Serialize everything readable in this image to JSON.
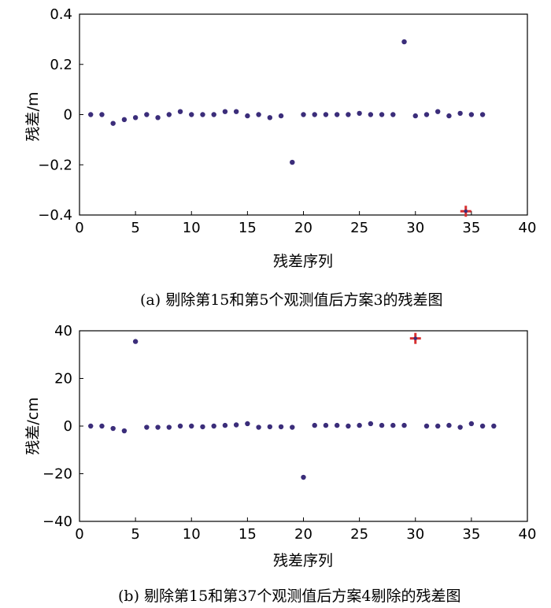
{
  "figure": {
    "captions": [
      "(a) 剔除第15和第5个观测值后方案3的残差图",
      "(b) 剔除第15和第37个观测值后方案4剔除的残差图"
    ]
  },
  "colors": {
    "point": "#3b2d7a",
    "marker": "#d83030",
    "axis": "#000000"
  },
  "chart_data": [
    {
      "type": "scatter",
      "title": "",
      "xlabel": "残差序列",
      "ylabel": "残差/m",
      "xlim": [
        0,
        40
      ],
      "ylim": [
        -0.4,
        0.4
      ],
      "xticks": [
        0,
        5,
        10,
        15,
        20,
        25,
        30,
        35,
        40
      ],
      "xtick_labels": [
        "0",
        "5",
        "10",
        "15",
        "20",
        "25",
        "30",
        "35",
        "40"
      ],
      "yticks": [
        -0.4,
        -0.2,
        0,
        0.2,
        0.4
      ],
      "ytick_labels": [
        "−0.4",
        "−0.2",
        "0",
        "0.2",
        "0.4"
      ],
      "grid": false,
      "x": [
        1,
        2,
        3,
        4,
        5,
        6,
        7,
        8,
        9,
        10,
        11,
        12,
        13,
        14,
        15,
        16,
        17,
        18,
        19,
        20,
        21,
        22,
        23,
        24,
        25,
        26,
        27,
        28,
        29,
        30,
        31,
        32,
        33,
        34,
        35,
        36
      ],
      "y": [
        0,
        0,
        -0.035,
        -0.02,
        -0.012,
        0,
        -0.012,
        0,
        0.012,
        0,
        0,
        0,
        0.012,
        0.012,
        -0.005,
        0,
        -0.012,
        -0.005,
        -0.19,
        0,
        0,
        0,
        0,
        0,
        0.005,
        0,
        0,
        0,
        0.29,
        -0.005,
        0,
        0.012,
        -0.005,
        0.005,
        0,
        0
      ],
      "marked_points": [
        {
          "x": 34.5,
          "y": -0.385
        }
      ]
    },
    {
      "type": "scatter",
      "title": "",
      "xlabel": "残差序列",
      "ylabel": "残差/cm",
      "xlim": [
        0,
        40
      ],
      "ylim": [
        -40,
        40
      ],
      "xticks": [
        0,
        5,
        10,
        15,
        20,
        25,
        30,
        35,
        40
      ],
      "xtick_labels": [
        "0",
        "5",
        "10",
        "15",
        "20",
        "25",
        "30",
        "35",
        "40"
      ],
      "yticks": [
        -40,
        -20,
        0,
        20,
        40
      ],
      "ytick_labels": [
        "−40",
        "−20",
        "0",
        "20",
        "40"
      ],
      "grid": false,
      "x": [
        1,
        2,
        3,
        4,
        5,
        6,
        7,
        8,
        9,
        10,
        11,
        12,
        13,
        14,
        15,
        16,
        17,
        18,
        19,
        20,
        21,
        22,
        23,
        24,
        25,
        26,
        27,
        28,
        29,
        31,
        32,
        33,
        34,
        35,
        36,
        37
      ],
      "y": [
        0,
        0,
        -1,
        -2,
        35.5,
        -0.5,
        -0.5,
        -0.5,
        0,
        0,
        -0.3,
        0,
        0.3,
        0.5,
        1,
        -0.5,
        -0.3,
        -0.3,
        -0.5,
        -21.5,
        0.3,
        0.3,
        0.3,
        0,
        0.3,
        1,
        0.3,
        0.3,
        0.3,
        0,
        0,
        0.3,
        -0.5,
        1,
        0,
        0
      ],
      "marked_points": [
        {
          "x": 30,
          "y": 36.8
        }
      ]
    }
  ]
}
